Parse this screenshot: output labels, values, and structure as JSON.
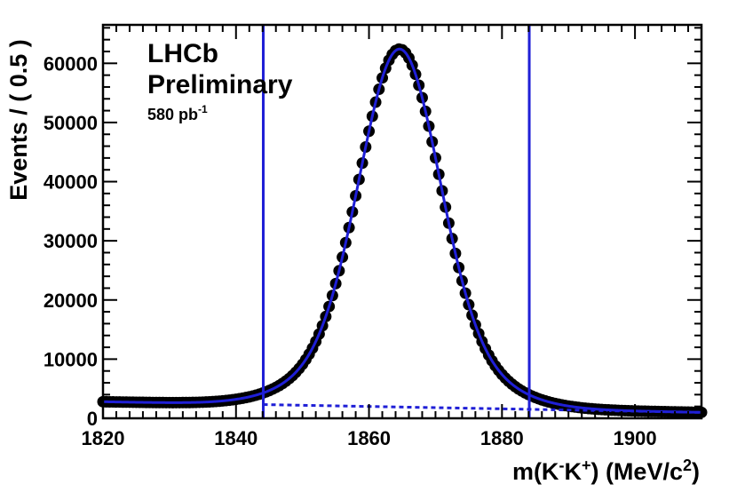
{
  "chart_data": {
    "type": "scatter",
    "title": "",
    "annotations": {
      "experiment": "LHCb",
      "status": "Preliminary",
      "lumi_value": "580 pb",
      "lumi_exp": "-1"
    },
    "xlabel": {
      "prefix": "m(K",
      "sup1": "-",
      "mid": "K",
      "sup2": "+",
      "suffix": ") (MeV/c",
      "sup3": "2",
      "close": ")"
    },
    "ylabel": "Events / ( 0.5 )",
    "xlim": [
      1820,
      1910
    ],
    "ylim": [
      0,
      66500
    ],
    "xticks": [
      1820,
      1840,
      1860,
      1880,
      1900
    ],
    "yticks": [
      0,
      10000,
      20000,
      30000,
      40000,
      50000,
      60000
    ],
    "signal_window": [
      1844.1,
      1884.1
    ],
    "model": {
      "peak_mean": 1864.6,
      "sigma": 5.8,
      "peak_signal": 60500,
      "background_at_1820": 2800,
      "background_at_1910": 1000
    },
    "series": [
      {
        "name": "Data",
        "style": "markers",
        "color": "#000000",
        "x_start": 1820,
        "x_end": 1910,
        "x_step": 0.5
      },
      {
        "name": "Total fit",
        "style": "solid-line",
        "color": "#1f1fd6"
      },
      {
        "name": "Background",
        "style": "dashed-line",
        "color": "#1f1fd6"
      }
    ],
    "colors": {
      "data": "#000000",
      "fit": "#1f1fd6",
      "window": "#1f1fd6"
    }
  }
}
